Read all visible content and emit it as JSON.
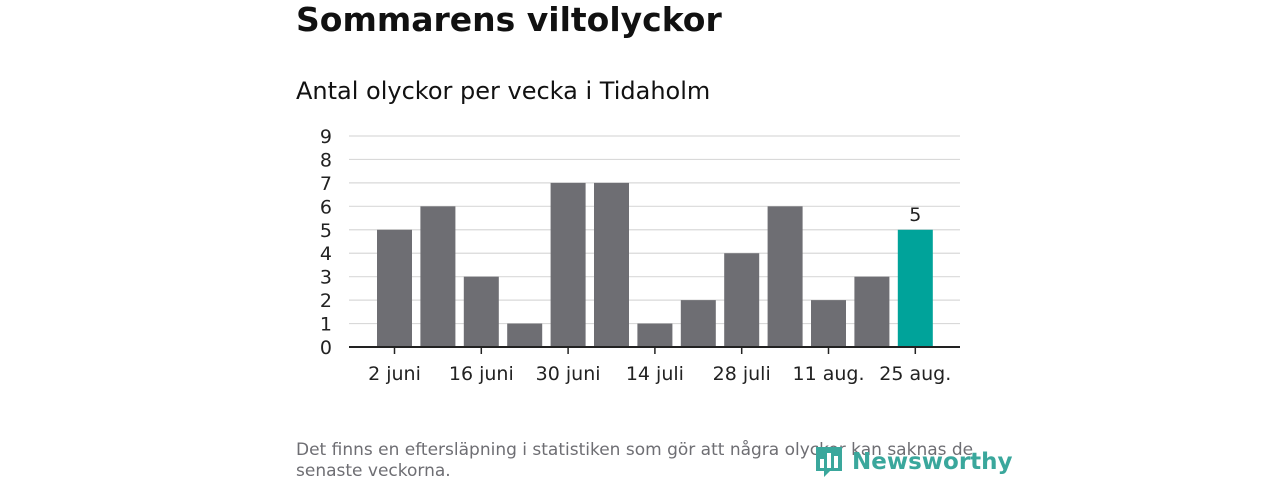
{
  "header": {
    "title": "Sommarens viltolyckor",
    "subtitle": "Antal olyckor per vecka i Tidaholm"
  },
  "footer": {
    "note": "Det finns en eftersläpning i statistiken som gör att några olyckor kan saknas de senaste veckorna.",
    "brand": "Newsworthy"
  },
  "colors": {
    "bar": "#6e6e73",
    "highlight": "#00a39a",
    "grid": "#d9d9d9",
    "axis": "#222222",
    "brand": "#3aa79c"
  },
  "chart_data": {
    "type": "bar",
    "title": "Sommarens viltolyckor",
    "subtitle": "Antal olyckor per vecka i Tidaholm",
    "xlabel": "",
    "ylabel": "",
    "ylim": [
      0,
      9
    ],
    "yticks": [
      0,
      1,
      2,
      3,
      4,
      5,
      6,
      7,
      8,
      9
    ],
    "grid": true,
    "legend": "none",
    "values": [
      5,
      6,
      3,
      1,
      7,
      7,
      1,
      2,
      4,
      6,
      2,
      3,
      5
    ],
    "x_tick_labels": [
      {
        "bar_index": 0,
        "label": "2 juni"
      },
      {
        "bar_index": 2,
        "label": "16 juni"
      },
      {
        "bar_index": 4,
        "label": "30 juni"
      },
      {
        "bar_index": 6,
        "label": "14 juli"
      },
      {
        "bar_index": 8,
        "label": "28 juli"
      },
      {
        "bar_index": 10,
        "label": "11 aug."
      },
      {
        "bar_index": 12,
        "label": "25 aug."
      }
    ],
    "highlight_index": 12,
    "annotations": [
      {
        "bar_index": 12,
        "text": "5"
      }
    ]
  }
}
